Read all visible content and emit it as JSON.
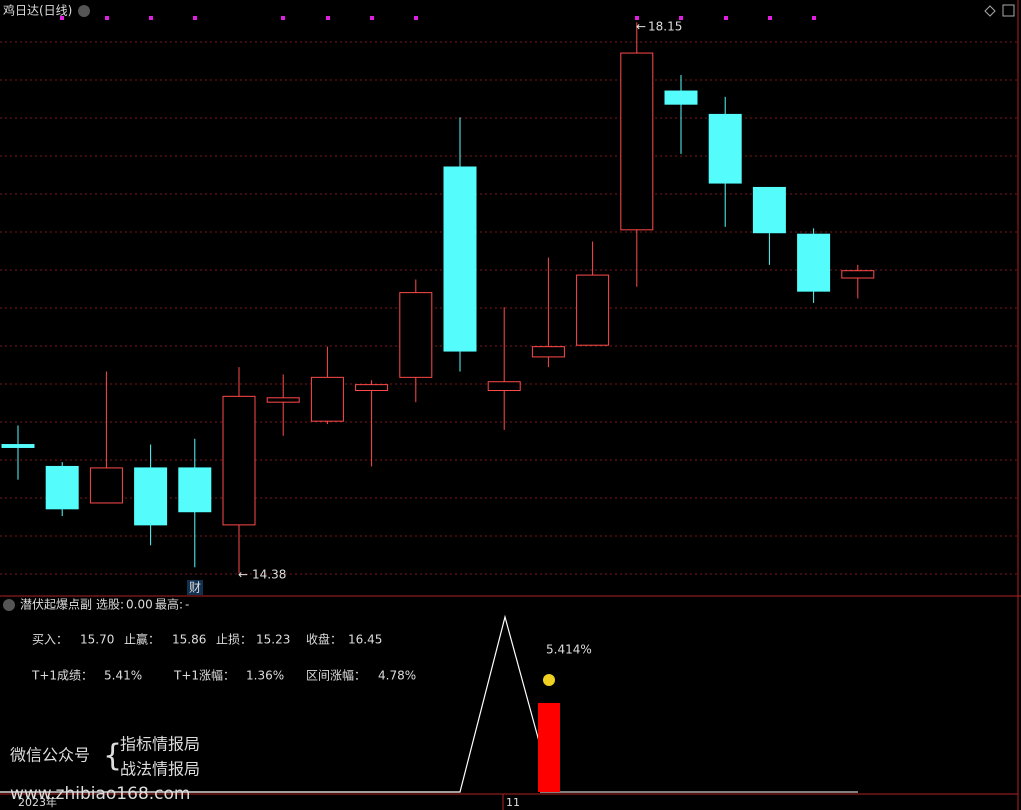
{
  "chart_data": {
    "type": "candlestick",
    "title": "鸡日达(日线)",
    "open": [
      15.26,
      15.11,
      14.86,
      15.1,
      15.1,
      14.71,
      15.55,
      15.42,
      15.63,
      15.72,
      17.16,
      15.63,
      15.86,
      15.94,
      16.73,
      17.68,
      17.52,
      17.02,
      16.7,
      16.4
    ],
    "high": [
      15.39,
      15.14,
      15.76,
      15.26,
      15.3,
      15.79,
      15.74,
      15.93,
      15.7,
      16.39,
      17.5,
      16.2,
      16.54,
      16.65,
      18.15,
      17.79,
      17.64,
      17.02,
      16.74,
      16.49
    ],
    "low": [
      15.02,
      14.77,
      14.86,
      14.57,
      14.42,
      14.38,
      15.32,
      15.4,
      15.11,
      15.55,
      15.76,
      15.36,
      15.79,
      15.94,
      16.34,
      17.25,
      16.75,
      16.49,
      16.23,
      16.26
    ],
    "close": [
      15.24,
      14.82,
      15.1,
      14.71,
      14.8,
      15.59,
      15.58,
      15.72,
      15.67,
      16.3,
      15.9,
      15.69,
      15.93,
      16.42,
      17.94,
      17.59,
      17.05,
      16.71,
      16.31,
      16.45
    ],
    "ylim": [
      14.23,
      18.18
    ],
    "max_label": "18.15",
    "min_label": "14.38",
    "event_label": "财",
    "x_labels": [
      "2023年",
      "11"
    ],
    "indicator": {
      "name": "潜伏起爆点副",
      "select_label": "选股:",
      "select_value": "0.00",
      "high_label": "最高:",
      "high_value": "-",
      "stats": [
        {
          "label": "买入：",
          "value": "15.70"
        },
        {
          "label": "止赢：",
          "value": "15.86"
        },
        {
          "label": "止损：",
          "value": "15.23"
        },
        {
          "label": "收盘：",
          "value": "16.45"
        },
        {
          "label": "T+1成绩：",
          "value": "5.41%"
        },
        {
          "label": "T+1涨幅：",
          "value": "1.36%"
        },
        {
          "label": "区间涨幅：",
          "value": "4.78%"
        }
      ],
      "peak_label": "5.414%"
    },
    "watermark": {
      "account": "微信公众号",
      "names": [
        "指标情报局",
        "战法情报局"
      ],
      "url": "www.zhibiao168.com"
    }
  }
}
